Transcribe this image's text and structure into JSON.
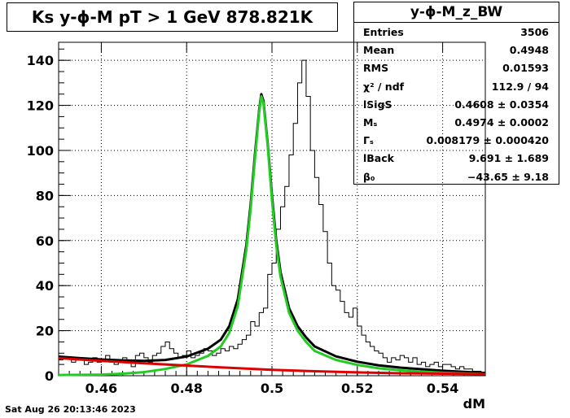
{
  "title": "Ks y-ϕ-M pT > 1 GeV  878.821K",
  "stats": {
    "name": "y-ϕ-M_z_BW",
    "rows": [
      {
        "label": "Entries",
        "value": "3506"
      },
      {
        "label": "Mean",
        "value": "0.4948"
      },
      {
        "label": "RMS",
        "value": "0.01593"
      },
      {
        "label": "χ² / ndf",
        "value": "112.9 / 94"
      },
      {
        "label": "lSigS",
        "value": "0.4608 ± 0.0354"
      },
      {
        "label": "Mₛ",
        "value": "0.4974 ± 0.0002"
      },
      {
        "label": "Γₛ",
        "value": "0.008179 ± 0.000420"
      },
      {
        "label": "lBack",
        "value": "9.691 ± 1.689"
      },
      {
        "label": "β₀",
        "value": "−43.65 ± 9.18"
      }
    ]
  },
  "datestamp": "Sat Aug 26 20:13:46 2023",
  "chart_data": {
    "type": "line",
    "xlabel": "dM",
    "ylabel": "",
    "xlim": [
      0.45,
      0.55
    ],
    "ylim": [
      0,
      148
    ],
    "grid": true,
    "x_ticks": [
      "0.46",
      "0.48",
      "0.5",
      "0.52",
      "0.54"
    ],
    "y_ticks": [
      "0",
      "20",
      "40",
      "60",
      "80",
      "100",
      "120",
      "140"
    ],
    "histogram": {
      "bin_width": 0.001,
      "x_start": 0.45,
      "counts": [
        7,
        8,
        8,
        6,
        7,
        7,
        5,
        6,
        8,
        6,
        7,
        9,
        6,
        5,
        7,
        8,
        7,
        4,
        9,
        10,
        8,
        6,
        9,
        10,
        13,
        15,
        12,
        10,
        8,
        9,
        11,
        8,
        9,
        10,
        12,
        11,
        9,
        10,
        12,
        11,
        13,
        12,
        14,
        16,
        18,
        24,
        22,
        28,
        30,
        45,
        50,
        65,
        75,
        84,
        98,
        112,
        130,
        140,
        124,
        100,
        88,
        76,
        64,
        50,
        40,
        38,
        33,
        28,
        26,
        30,
        22,
        18,
        15,
        13,
        11,
        10,
        8,
        6,
        8,
        7,
        9,
        8,
        6,
        8,
        5,
        6,
        4,
        5,
        6,
        4,
        5,
        5,
        4,
        3,
        4,
        3,
        3,
        2,
        2,
        1
      ]
    },
    "series": [
      {
        "name": "",
        "color": "#000000",
        "x": [
          0.45,
          0.455,
          0.46,
          0.465,
          0.47,
          0.475,
          0.48,
          0.485,
          0.488,
          0.49,
          0.492,
          0.494,
          0.495,
          0.496,
          0.497,
          0.4975,
          0.498,
          0.499,
          0.5,
          0.501,
          0.502,
          0.504,
          0.506,
          0.508,
          0.51,
          0.515,
          0.52,
          0.525,
          0.53,
          0.54,
          0.55
        ],
        "y": [
          8.5,
          7.8,
          7.2,
          6.8,
          6.6,
          7.0,
          8.5,
          12,
          16,
          22,
          34,
          58,
          76,
          98,
          118,
          125,
          122,
          103,
          80,
          60,
          46,
          30,
          22,
          17,
          13,
          8.6,
          6.2,
          4.6,
          3.6,
          2.2,
          1.2
        ]
      },
      {
        "name": "",
        "color": "#22cc22",
        "x": [
          0.45,
          0.455,
          0.46,
          0.465,
          0.47,
          0.475,
          0.48,
          0.485,
          0.488,
          0.49,
          0.492,
          0.494,
          0.495,
          0.496,
          0.497,
          0.4975,
          0.498,
          0.499,
          0.5,
          0.501,
          0.502,
          0.504,
          0.506,
          0.508,
          0.51,
          0.515,
          0.52,
          0.525,
          0.53,
          0.54,
          0.55
        ],
        "y": [
          0.3,
          0.4,
          0.5,
          0.9,
          1.6,
          3.0,
          5.0,
          8.8,
          13,
          19,
          31,
          56,
          74,
          96,
          117,
          124,
          121,
          102,
          78,
          58,
          44,
          28,
          20,
          15,
          11,
          7.0,
          4.8,
          3.3,
          2.4,
          1.3,
          0.7
        ]
      },
      {
        "name": "",
        "color": "#dd0000",
        "x": [
          0.45,
          0.46,
          0.47,
          0.48,
          0.49,
          0.5,
          0.51,
          0.52,
          0.53,
          0.54,
          0.55
        ],
        "y": [
          7.8,
          6.6,
          5.5,
          4.5,
          3.5,
          2.6,
          2.0,
          1.5,
          1.1,
          0.9,
          0.7
        ]
      }
    ]
  }
}
